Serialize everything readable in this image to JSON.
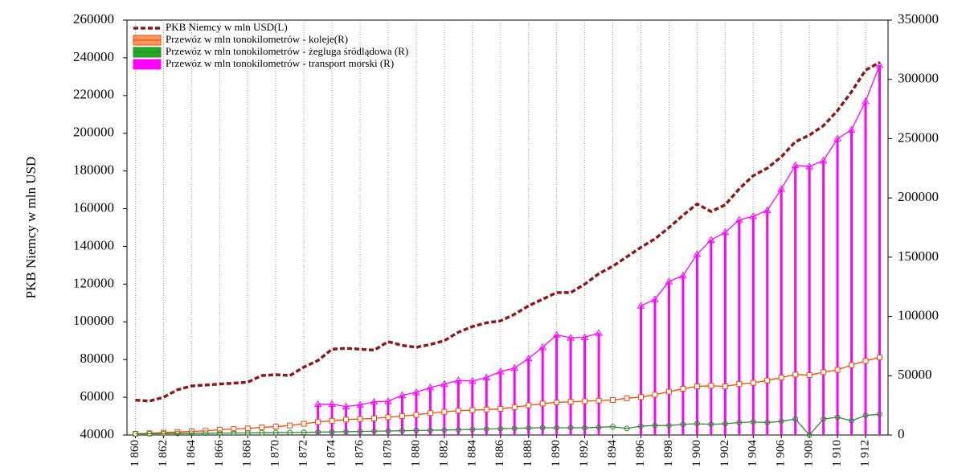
{
  "chart_data": {
    "type": "line",
    "y_label": "PKB  Niemcy w mln USD",
    "x": [
      1860,
      1861,
      1862,
      1863,
      1864,
      1865,
      1866,
      1867,
      1868,
      1869,
      1870,
      1871,
      1872,
      1873,
      1874,
      1875,
      1876,
      1877,
      1878,
      1879,
      1880,
      1881,
      1882,
      1883,
      1884,
      1885,
      1886,
      1887,
      1888,
      1889,
      1890,
      1891,
      1892,
      1893,
      1894,
      1895,
      1896,
      1897,
      1898,
      1899,
      1900,
      1901,
      1902,
      1903,
      1904,
      1905,
      1906,
      1907,
      1908,
      1909,
      1910,
      1911,
      1912,
      1913
    ],
    "series": [
      {
        "name": "PKB  Niemcy w mln USD(L)",
        "color": "#8b1a1a",
        "style": "dashed",
        "values": [
          58500,
          58000,
          60000,
          64000,
          66000,
          66500,
          67000,
          67500,
          68000,
          71500,
          72000,
          71500,
          76000,
          79500,
          85500,
          86000,
          85500,
          85000,
          89500,
          87500,
          86500,
          88000,
          90000,
          94500,
          97500,
          99500,
          100500,
          104000,
          108500,
          112000,
          115500,
          115500,
          120000,
          125500,
          129500,
          134500,
          139500,
          144000,
          150000,
          156500,
          162500,
          158500,
          162000,
          170500,
          177500,
          181500,
          187500,
          195500,
          199000,
          204000,
          212000,
          222000,
          233500,
          237500
        ]
      },
      {
        "name": "Przewóz w mln tonokilometrów - koleje(R)",
        "color": "#ff4500",
        "marker": "square",
        "axis": "y2",
        "values": [
          1000,
          1500,
          2000,
          2500,
          3000,
          3500,
          4500,
          5000,
          5500,
          6500,
          7000,
          8000,
          9500,
          11000,
          12000,
          13000,
          13500,
          14000,
          15000,
          16000,
          17000,
          18500,
          19500,
          20500,
          21000,
          21500,
          22000,
          23500,
          25000,
          26500,
          27500,
          28000,
          28500,
          29000,
          29500,
          31000,
          32000,
          34000,
          36500,
          39000,
          41000,
          41500,
          41000,
          43000,
          44000,
          46000,
          48500,
          51000,
          50500,
          53000,
          55000,
          59000,
          62500,
          65500
        ]
      },
      {
        "name": "Przewóz w mln tonokilometrów - żegluga śródlądowa (R)",
        "color": "#2e8b2e",
        "marker": "circle",
        "axis": "y2",
        "values": [
          1000,
          1000,
          1200,
          1300,
          1400,
          1500,
          1600,
          1700,
          1800,
          1900,
          2000,
          2100,
          2200,
          2400,
          2600,
          2800,
          3000,
          3200,
          3400,
          3600,
          3800,
          4000,
          4200,
          4400,
          4700,
          5000,
          5300,
          5600,
          5900,
          6200,
          6000,
          6200,
          6000,
          6500,
          7000,
          5500,
          7500,
          8000,
          8000,
          9000,
          9500,
          9000,
          9500,
          10500,
          11000,
          10500,
          11500,
          13500,
          0,
          13500,
          15000,
          12000,
          16500,
          17500
        ]
      },
      {
        "name": "Przewóz w mln tonokilometrów - transport morski (R)",
        "color": "#ff00ff",
        "marker": "triangle",
        "needles": true,
        "axis": "y2",
        "values": [
          null,
          null,
          null,
          null,
          null,
          null,
          null,
          null,
          null,
          null,
          null,
          null,
          null,
          26000,
          26000,
          24000,
          25500,
          28000,
          28500,
          33500,
          36000,
          40000,
          43000,
          46000,
          45500,
          48500,
          53500,
          56500,
          64500,
          74000,
          84500,
          82000,
          82500,
          86000,
          null,
          null,
          109000,
          114500,
          129500,
          134500,
          152500,
          164500,
          171000,
          181500,
          184500,
          189500,
          207500,
          227500,
          226500,
          231500,
          250000,
          257500,
          281500,
          312000
        ]
      }
    ],
    "xlim": [
      1859.4,
      1913.6
    ],
    "xticks": [
      {
        "value": 1860,
        "label": "1 860"
      },
      {
        "value": 1862,
        "label": "1 862"
      },
      {
        "value": 1864,
        "label": "1 864"
      },
      {
        "value": 1866,
        "label": "1 866"
      },
      {
        "value": 1868,
        "label": "1 868"
      },
      {
        "value": 1870,
        "label": "1 870"
      },
      {
        "value": 1872,
        "label": "1 872"
      },
      {
        "value": 1874,
        "label": "1 874"
      },
      {
        "value": 1876,
        "label": "1 876"
      },
      {
        "value": 1878,
        "label": "1 878"
      },
      {
        "value": 1880,
        "label": "1 880"
      },
      {
        "value": 1882,
        "label": "1 882"
      },
      {
        "value": 1884,
        "label": "1 884"
      },
      {
        "value": 1886,
        "label": "1 886"
      },
      {
        "value": 1888,
        "label": "1 888"
      },
      {
        "value": 1890,
        "label": "1 890"
      },
      {
        "value": 1892,
        "label": "1 892"
      },
      {
        "value": 1894,
        "label": "1 894"
      },
      {
        "value": 1896,
        "label": "1 896"
      },
      {
        "value": 1898,
        "label": "1 898"
      },
      {
        "value": 1900,
        "label": "1 900"
      },
      {
        "value": 1902,
        "label": "1 902"
      },
      {
        "value": 1904,
        "label": "1 904"
      },
      {
        "value": 1906,
        "label": "1 906"
      },
      {
        "value": 1908,
        "label": "1 908"
      },
      {
        "value": 1910,
        "label": "1 910"
      },
      {
        "value": 1912,
        "label": "1 912"
      }
    ],
    "ylim": [
      40000,
      260000
    ],
    "yticks": [
      40000,
      60000,
      80000,
      100000,
      120000,
      140000,
      160000,
      180000,
      200000,
      220000,
      240000,
      260000
    ],
    "y2lim": [
      0,
      350000
    ],
    "y2ticks": [
      0,
      50000,
      100000,
      150000,
      200000,
      250000,
      300000,
      350000
    ],
    "grid": "vertical-dotted",
    "legend": "top-left"
  }
}
